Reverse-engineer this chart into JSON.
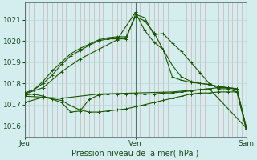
{
  "xlabel": "Pression niveau de la mer( hPa )",
  "yticks": [
    1016,
    1017,
    1018,
    1019,
    1020,
    1021
  ],
  "ylim": [
    1015.5,
    1021.8
  ],
  "xlim": [
    0,
    48
  ],
  "xtick_positions": [
    0,
    24,
    48
  ],
  "xtick_labels": [
    "Jeu",
    "Ven",
    "Sam"
  ],
  "bg_color": "#d4eef0",
  "grid_color_v": "#d4a0a0",
  "grid_color_h": "#b8d8d8",
  "line_color": "#1a5500",
  "lines": [
    [
      0,
      1017.55,
      2,
      1017.7,
      4,
      1018.0,
      6,
      1018.4,
      8,
      1018.9,
      10,
      1019.3,
      12,
      1019.55,
      14,
      1019.8,
      16,
      1020.0,
      18,
      1020.1,
      20,
      1020.1,
      22,
      1020.1,
      24,
      1021.25,
      26,
      1021.1,
      28,
      1020.3,
      30,
      1020.35,
      32,
      1019.9,
      34,
      1019.5,
      36,
      1019.0,
      38,
      1018.5,
      40,
      1018.0,
      42,
      1017.75,
      44,
      1017.75,
      46,
      1017.6,
      48,
      1015.85
    ],
    [
      0,
      1017.55,
      2,
      1017.7,
      4,
      1018.1,
      6,
      1018.6,
      8,
      1019.0,
      10,
      1019.4,
      12,
      1019.65,
      14,
      1019.85,
      16,
      1020.05,
      18,
      1020.15,
      20,
      1020.2,
      22,
      1020.2,
      24,
      1021.15,
      26,
      1020.95,
      28,
      1020.4,
      30,
      1019.6,
      32,
      1018.3,
      34,
      1018.15,
      36,
      1018.05,
      38,
      1018.0,
      40,
      1017.95,
      42,
      1017.85,
      44,
      1017.8,
      46,
      1017.7,
      48,
      1015.9
    ],
    [
      0,
      1017.5,
      4,
      1017.8,
      8,
      1018.55,
      12,
      1019.15,
      16,
      1019.6,
      20,
      1020.05,
      24,
      1021.35,
      26,
      1020.5,
      28,
      1019.95,
      30,
      1019.6,
      32,
      1018.85,
      34,
      1018.3,
      36,
      1018.1,
      38,
      1018.0,
      40,
      1017.95,
      42,
      1017.85,
      44,
      1017.8,
      46,
      1017.75,
      48,
      1015.95
    ],
    [
      0,
      1017.45,
      2,
      1017.5,
      4,
      1017.4,
      6,
      1017.25,
      8,
      1017.1,
      10,
      1016.65,
      12,
      1016.7,
      14,
      1017.25,
      16,
      1017.45,
      18,
      1017.5,
      20,
      1017.5,
      22,
      1017.5,
      24,
      1017.5,
      26,
      1017.5,
      28,
      1017.5,
      30,
      1017.55,
      32,
      1017.55,
      34,
      1017.6,
      36,
      1017.65,
      38,
      1017.7,
      40,
      1017.75,
      42,
      1017.8,
      44,
      1017.8,
      46,
      1017.75,
      48,
      1015.85
    ],
    [
      0,
      1017.4,
      8,
      1017.3,
      16,
      1017.5,
      24,
      1017.55,
      32,
      1017.6,
      40,
      1017.75,
      48,
      1015.9
    ],
    [
      0,
      1017.1,
      4,
      1017.35,
      8,
      1017.2,
      10,
      1016.95,
      12,
      1016.75,
      14,
      1016.65,
      16,
      1016.65,
      18,
      1016.7,
      20,
      1016.75,
      22,
      1016.8,
      24,
      1016.9,
      26,
      1017.0,
      28,
      1017.1,
      30,
      1017.2,
      32,
      1017.3,
      34,
      1017.4,
      36,
      1017.5,
      38,
      1017.55,
      40,
      1017.55,
      42,
      1017.6,
      44,
      1017.6,
      46,
      1017.6,
      48,
      1015.95
    ]
  ]
}
